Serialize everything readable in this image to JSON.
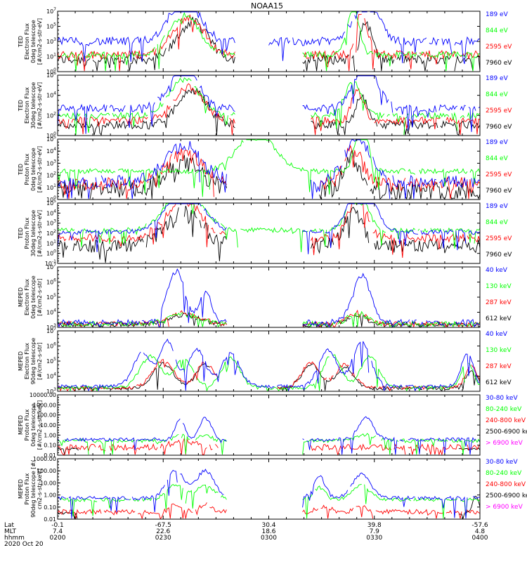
{
  "title": "NOAA15",
  "colors": {
    "black": "#000000",
    "red": "#ff0000",
    "green": "#00ff00",
    "blue": "#0000ff",
    "magenta": "#ff00ff"
  },
  "footer": {
    "row_labels": [
      "Lat",
      "MLT",
      "hhmm",
      "2020 Oct 20"
    ],
    "columns": [
      {
        "lat": "-0.1",
        "mlt": "7.4",
        "hhmm": "0200"
      },
      {
        "lat": "-67.5",
        "mlt": "22.6",
        "hhmm": "0230"
      },
      {
        "lat": "30.4",
        "mlt": "18.6",
        "hhmm": "0300"
      },
      {
        "lat": "39.8",
        "mlt": "7.9",
        "hhmm": "0330"
      },
      {
        "lat": "-57.6",
        "mlt": "4.8",
        "hhmm": "0400"
      }
    ]
  },
  "chart_data": [
    {
      "type": "line",
      "scale": "log",
      "ylabel": [
        "TED",
        "Electron Flux",
        "0deg telescope",
        "[#/cm2-s-str-eV]"
      ],
      "ylim": [
        1,
        10000000
      ],
      "ticks": [
        "10^0",
        "10^1",
        "10^3",
        "10^5",
        "10^7"
      ],
      "series": [
        {
          "name": "7960 eV",
          "color": "#000000",
          "level": 0.2,
          "spread": 0.08,
          "humps": [
            [
              0.32,
              0.62,
              0.05
            ],
            [
              0.73,
              0.62,
              0.02
            ]
          ],
          "gap": [
            0.42,
            0.58
          ]
        },
        {
          "name": "2595 eV",
          "color": "#ff0000",
          "level": 0.28,
          "spread": 0.07,
          "humps": [
            [
              0.31,
              0.62,
              0.05
            ],
            [
              0.72,
              0.68,
              0.02
            ]
          ],
          "gap": [
            0.42,
            0.58
          ]
        },
        {
          "name": "844 eV",
          "color": "#00ff00",
          "level": 0.28,
          "spread": 0.05,
          "humps": [
            [
              0.3,
              0.65,
              0.05
            ],
            [
              0.7,
              0.8,
              0.02
            ]
          ],
          "gap": [
            0.42,
            0.58
          ]
        },
        {
          "name": "189 eV",
          "color": "#0000ff",
          "level": 0.5,
          "spread": 0.07,
          "humps": [
            [
              0.3,
              0.7,
              0.05
            ],
            [
              0.73,
              0.7,
              0.04
            ]
          ],
          "gap": [
            0.42,
            0.5
          ]
        }
      ]
    },
    {
      "type": "line",
      "scale": "log",
      "ylabel": [
        "TED",
        "Electron Flux",
        "30deg telescope",
        "[#/cm2-s-str-eV]"
      ],
      "ylim": [
        1,
        1000000
      ],
      "ticks": [
        "10^0",
        "10^2",
        "10^4",
        "10^6"
      ],
      "series": [
        {
          "name": "7960 eV",
          "color": "#000000",
          "level": 0.18,
          "spread": 0.07,
          "humps": [
            [
              0.32,
              0.55,
              0.05
            ],
            [
              0.72,
              0.45,
              0.02
            ]
          ],
          "gap": [
            0.42,
            0.6
          ]
        },
        {
          "name": "2595 eV",
          "color": "#ff0000",
          "level": 0.25,
          "spread": 0.06,
          "humps": [
            [
              0.31,
              0.55,
              0.05
            ],
            [
              0.71,
              0.5,
              0.02
            ]
          ],
          "gap": [
            0.42,
            0.6
          ]
        },
        {
          "name": "844 eV",
          "color": "#00ff00",
          "level": 0.33,
          "spread": 0.05,
          "humps": [
            [
              0.3,
              0.6,
              0.05
            ],
            [
              0.7,
              0.55,
              0.03
            ]
          ],
          "gap": [
            0.42,
            0.6
          ]
        },
        {
          "name": "189 eV",
          "color": "#0000ff",
          "level": 0.45,
          "spread": 0.06,
          "humps": [
            [
              0.3,
              0.65,
              0.05
            ],
            [
              0.73,
              0.7,
              0.04
            ]
          ],
          "gap": [
            0.42,
            0.58
          ]
        }
      ]
    },
    {
      "type": "line",
      "scale": "log",
      "ylabel": [
        "TED",
        "Proton Flux",
        "0deg telescope",
        "[#/cm2-s-str-eV]"
      ],
      "ylim": [
        1,
        100000
      ],
      "ticks": [
        "10^0",
        "10^1",
        "10^2",
        "10^3",
        "10^4",
        "10^5"
      ],
      "series": [
        {
          "name": "7960 eV",
          "color": "#000000",
          "level": 0.15,
          "spread": 0.15,
          "humps": [
            [
              0.3,
              0.45,
              0.06
            ],
            [
              0.7,
              0.55,
              0.03
            ]
          ],
          "gap": [
            0.4,
            0.62
          ]
        },
        {
          "name": "2595 eV",
          "color": "#ff0000",
          "level": 0.25,
          "spread": 0.12,
          "humps": [
            [
              0.3,
              0.5,
              0.06
            ],
            [
              0.7,
              0.6,
              0.03
            ]
          ],
          "gap": [
            0.4,
            0.62
          ]
        },
        {
          "name": "844 eV",
          "color": "#00ff00",
          "level": 0.47,
          "spread": 0.04,
          "humps": [
            [
              0.47,
              0.65,
              0.06
            ],
            [
              0.72,
              0.9,
              0.02
            ]
          ],
          "gap": [
            2,
            2
          ]
        },
        {
          "name": "189 eV",
          "color": "#0000ff",
          "level": 0.3,
          "spread": 0.1,
          "humps": [
            [
              0.3,
              0.6,
              0.06
            ],
            [
              0.71,
              0.75,
              0.04
            ]
          ],
          "gap": [
            0.4,
            0.6
          ]
        }
      ]
    },
    {
      "type": "line",
      "scale": "log",
      "ylabel": [
        "TED",
        "Proton Flux",
        "30deg telescope",
        "[#/cm2-s-str-eV]"
      ],
      "ylim": [
        0.1,
        100000
      ],
      "ticks": [
        "10^-1",
        "10^0",
        "10^1",
        "10^2",
        "10^3",
        "10^4",
        "10^5"
      ],
      "series": [
        {
          "name": "7960 eV",
          "color": "#000000",
          "level": 0.3,
          "spread": 0.12,
          "humps": [
            [
              0.3,
              0.55,
              0.06
            ],
            [
              0.7,
              0.6,
              0.03
            ]
          ],
          "gap": [
            0.4,
            0.6
          ]
        },
        {
          "name": "2595 eV",
          "color": "#ff0000",
          "level": 0.42,
          "spread": 0.07,
          "humps": [
            [
              0.3,
              0.6,
              0.06
            ],
            [
              0.71,
              0.68,
              0.03
            ]
          ],
          "gap": [
            0.4,
            0.6
          ]
        },
        {
          "name": "844 eV",
          "color": "#00ff00",
          "level": 0.55,
          "spread": 0.04,
          "humps": [
            [
              0.3,
              0.68,
              0.06
            ],
            [
              0.71,
              0.78,
              0.03
            ]
          ],
          "gap": [
            2,
            2
          ]
        },
        {
          "name": "189 eV",
          "color": "#0000ff",
          "level": 0.52,
          "spread": 0.04,
          "humps": [
            [
              0.3,
              0.7,
              0.06
            ],
            [
              0.72,
              0.88,
              0.04
            ]
          ],
          "gap": [
            0.4,
            0.58
          ]
        }
      ]
    },
    {
      "type": "line",
      "scale": "log",
      "ylabel": [
        "MEPED",
        "Electron Flux",
        "0deg telescope",
        "[#/cm2-s-str]"
      ],
      "ylim": [
        1000,
        10000000
      ],
      "ticks": [
        "10^3",
        "10^4",
        "10^5",
        "10^6",
        "10^7"
      ],
      "series": [
        {
          "name": "612 keV",
          "color": "#000000",
          "level": 0.05,
          "spread": 0.04,
          "humps": [
            [
              0.3,
              0.15,
              0.05
            ],
            [
              0.71,
              0.15,
              0.03
            ]
          ],
          "gap": [
            0.4,
            0.58
          ]
        },
        {
          "name": "287 keV",
          "color": "#ff0000",
          "level": 0.06,
          "spread": 0.04,
          "humps": [
            [
              0.3,
              0.18,
              0.05
            ],
            [
              0.71,
              0.18,
              0.03
            ]
          ],
          "gap": [
            0.4,
            0.58
          ]
        },
        {
          "name": "130 keV",
          "color": "#00ff00",
          "level": 0.06,
          "spread": 0.04,
          "humps": [
            [
              0.3,
              0.15,
              0.05
            ],
            [
              0.71,
              0.18,
              0.03
            ]
          ],
          "gap": [
            0.4,
            0.58
          ]
        },
        {
          "name": "40 keV",
          "color": "#0000ff",
          "level": 0.08,
          "spread": 0.05,
          "humps": [
            [
              0.28,
              0.85,
              0.03
            ],
            [
              0.35,
              0.5,
              0.02
            ],
            [
              0.72,
              0.78,
              0.03
            ]
          ],
          "gap": [
            0.4,
            0.58
          ]
        }
      ]
    },
    {
      "type": "line",
      "scale": "log",
      "ylabel": [
        "MEPED",
        "Electron Flux",
        "90deg telescope",
        "[#/cm2-s-str]"
      ],
      "ylim": [
        1000,
        10000000
      ],
      "ticks": [
        "10^3",
        "10^4",
        "10^5",
        "10^6",
        "10^7"
      ],
      "series": [
        {
          "name": "612 keV",
          "color": "#000000",
          "level": 0.05,
          "spread": 0.03,
          "humps": [
            [
              0.25,
              0.4,
              0.035
            ],
            [
              0.35,
              0.4,
              0.03
            ],
            [
              0.6,
              0.4,
              0.03
            ],
            [
              0.68,
              0.35,
              0.03
            ],
            [
              0.98,
              0.3,
              0.02
            ]
          ],
          "gap": [
            0.38,
            0.52
          ]
        },
        {
          "name": "287 keV",
          "color": "#ff0000",
          "level": 0.06,
          "spread": 0.03,
          "humps": [
            [
              0.25,
              0.45,
              0.035
            ],
            [
              0.35,
              0.42,
              0.03
            ],
            [
              0.6,
              0.42,
              0.03
            ],
            [
              0.68,
              0.38,
              0.03
            ],
            [
              0.98,
              0.35,
              0.02
            ]
          ],
          "gap": [
            0.38,
            0.52
          ]
        },
        {
          "name": "130 keV",
          "color": "#00ff00",
          "level": 0.06,
          "spread": 0.03,
          "humps": [
            [
              0.22,
              0.52,
              0.035
            ],
            [
              0.3,
              0.48,
              0.03
            ],
            [
              0.41,
              0.5,
              0.03
            ],
            [
              0.65,
              0.55,
              0.03
            ],
            [
              0.74,
              0.52,
              0.03
            ],
            [
              0.97,
              0.42,
              0.02
            ]
          ],
          "gap": [
            0.5,
            0.5
          ]
        },
        {
          "name": "40 keV",
          "color": "#0000ff",
          "level": 0.08,
          "spread": 0.03,
          "humps": [
            [
              0.2,
              0.55,
              0.03
            ],
            [
              0.26,
              0.75,
              0.025
            ],
            [
              0.33,
              0.6,
              0.03
            ],
            [
              0.41,
              0.55,
              0.03
            ],
            [
              0.64,
              0.6,
              0.03
            ],
            [
              0.72,
              0.75,
              0.03
            ],
            [
              0.97,
              0.55,
              0.02
            ]
          ],
          "gap": [
            0.5,
            0.5
          ]
        }
      ]
    },
    {
      "type": "line",
      "scale": "log",
      "ylabel": [
        "MEPED",
        "Proton Flux",
        "0deg telescope",
        "[#/cm2-s-str-keV]"
      ],
      "ylim": [
        0.01,
        10000
      ],
      "ticks": [
        "0.01",
        "0.10",
        "1.00",
        "10.00",
        "100.00",
        "1000.00",
        "10000.00"
      ],
      "series": [
        {
          "name": "> 6900 keV",
          "color": "#ff00ff",
          "level": -1,
          "spread": 0,
          "humps": [],
          "gap": [
            0,
            1
          ]
        },
        {
          "name": "2500-6900 keV",
          "color": "#000000",
          "level": 0.1,
          "spread": 0.02,
          "humps": [],
          "gap": [
            0.05,
            0.95
          ]
        },
        {
          "name": "240-800 keV",
          "color": "#ff0000",
          "level": 0.13,
          "spread": 0.05,
          "humps": [
            [
              0.3,
              0.12,
              0.04
            ],
            [
              0.52,
              0.12,
              0.01
            ]
          ],
          "gap": [
            0.38,
            0.6
          ]
        },
        {
          "name": "80-240 keV",
          "color": "#00ff00",
          "level": 0.24,
          "spread": 0.03,
          "humps": [
            [
              0.29,
              0.1,
              0.02
            ],
            [
              0.35,
              0.1,
              0.02
            ],
            [
              0.73,
              0.1,
              0.03
            ]
          ],
          "gap": [
            0.4,
            0.58
          ]
        },
        {
          "name": "30-80 keV",
          "color": "#0000ff",
          "level": 0.26,
          "spread": 0.03,
          "humps": [
            [
              0.29,
              0.35,
              0.015
            ],
            [
              0.35,
              0.35,
              0.02
            ],
            [
              0.73,
              0.35,
              0.025
            ]
          ],
          "gap": [
            0.4,
            0.58
          ]
        }
      ]
    },
    {
      "type": "line",
      "scale": "log",
      "ylabel": [
        "MEPED",
        "Proton Flux",
        "90deg telescope [#/",
        "cm2-s-str-keV]"
      ],
      "ylim": [
        0.01,
        1000
      ],
      "ticks": [
        "0.01",
        "0.10",
        "1.00",
        "10.00",
        "100.00",
        "1000.00"
      ],
      "series": [
        {
          "name": "> 6900 keV",
          "color": "#ff00ff",
          "level": -1,
          "spread": 0,
          "humps": [],
          "gap": [
            0,
            1
          ]
        },
        {
          "name": "2500-6900 keV",
          "color": "#000000",
          "level": 0.1,
          "spread": 0.02,
          "humps": [
            [
              0.99,
              0.3,
              0.01
            ]
          ],
          "gap": [
            0.05,
            0.95
          ]
        },
        {
          "name": "240-800 keV",
          "color": "#ff0000",
          "level": 0.12,
          "spread": 0.04,
          "humps": [
            [
              0.28,
              0.12,
              0.02
            ],
            [
              0.35,
              0.12,
              0.02
            ],
            [
              0.63,
              0.1,
              0.02
            ],
            [
              0.72,
              0.1,
              0.02
            ]
          ],
          "gap": [
            0.4,
            0.58
          ]
        },
        {
          "name": "80-240 keV",
          "color": "#00ff00",
          "level": 0.32,
          "spread": 0.03,
          "humps": [
            [
              0.28,
              0.25,
              0.03
            ],
            [
              0.35,
              0.25,
              0.03
            ],
            [
              0.62,
              0.2,
              0.02
            ],
            [
              0.72,
              0.25,
              0.03
            ]
          ],
          "gap": [
            0.4,
            0.58
          ]
        },
        {
          "name": "30-80 keV",
          "color": "#0000ff",
          "level": 0.35,
          "spread": 0.03,
          "humps": [
            [
              0.28,
              0.45,
              0.03
            ],
            [
              0.35,
              0.45,
              0.03
            ],
            [
              0.62,
              0.35,
              0.02
            ],
            [
              0.72,
              0.4,
              0.03
            ]
          ],
          "gap": [
            0.4,
            0.58
          ]
        }
      ]
    }
  ]
}
